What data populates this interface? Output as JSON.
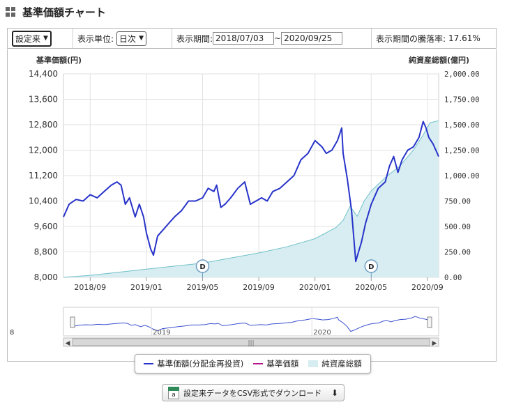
{
  "header": {
    "title": "基準価額チャート",
    "icon": "grid-icon"
  },
  "controls": {
    "range_select": "設定来",
    "unit_label": "表示単位:",
    "unit_select": "日次",
    "period_label": "表示期間:",
    "period_start": "2018/07/03",
    "period_sep": "~",
    "period_end": "2020/09/25",
    "change_label": "表示期間の騰落率:",
    "change_value": "17.61%"
  },
  "chart_data": {
    "type": "line",
    "left_axis_label": "基準価額(円)",
    "right_axis_label": "純資産総額(億円)",
    "y_left": {
      "min": 8000,
      "max": 14400,
      "ticks": [
        "8,000",
        "8,800",
        "9,600",
        "10,400",
        "11,200",
        "12,000",
        "12,800",
        "13,600",
        "14,400"
      ]
    },
    "y_right": {
      "min": 0,
      "max": 2000,
      "ticks": [
        "0.00",
        "250.00",
        "500.00",
        "750.00",
        "1,000.00",
        "1,250.00",
        "1,500.00",
        "1,750.00",
        "2,000.00"
      ]
    },
    "x_ticks": [
      "2018/09",
      "2019/01",
      "2019/05",
      "2019/09",
      "2020/01",
      "2020/05",
      "2020/09"
    ],
    "x_tick_months": [
      2,
      6,
      10,
      14,
      18,
      22,
      26
    ],
    "x_range_months": [
      0.1,
      26.8
    ],
    "nav": [
      [
        0.1,
        9900
      ],
      [
        0.5,
        10300
      ],
      [
        1.0,
        10450
      ],
      [
        1.5,
        10400
      ],
      [
        2.0,
        10600
      ],
      [
        2.5,
        10500
      ],
      [
        3.0,
        10700
      ],
      [
        3.5,
        10900
      ],
      [
        3.9,
        11000
      ],
      [
        4.2,
        10900
      ],
      [
        4.5,
        10300
      ],
      [
        4.8,
        10500
      ],
      [
        5.2,
        9900
      ],
      [
        5.5,
        10300
      ],
      [
        5.8,
        9900
      ],
      [
        6.0,
        9400
      ],
      [
        6.3,
        8900
      ],
      [
        6.5,
        8700
      ],
      [
        6.8,
        9300
      ],
      [
        7.2,
        9500
      ],
      [
        7.6,
        9700
      ],
      [
        8.0,
        9900
      ],
      [
        8.5,
        10100
      ],
      [
        9.0,
        10400
      ],
      [
        9.5,
        10400
      ],
      [
        10.0,
        10500
      ],
      [
        10.4,
        10800
      ],
      [
        10.8,
        10700
      ],
      [
        11.0,
        10900
      ],
      [
        11.3,
        10200
      ],
      [
        11.6,
        10300
      ],
      [
        12.0,
        10500
      ],
      [
        12.5,
        10800
      ],
      [
        13.0,
        11000
      ],
      [
        13.4,
        10300
      ],
      [
        13.8,
        10400
      ],
      [
        14.2,
        10500
      ],
      [
        14.6,
        10400
      ],
      [
        15.0,
        10700
      ],
      [
        15.5,
        10800
      ],
      [
        16.0,
        11000
      ],
      [
        16.5,
        11200
      ],
      [
        17.0,
        11700
      ],
      [
        17.5,
        11900
      ],
      [
        18.0,
        12300
      ],
      [
        18.5,
        12100
      ],
      [
        18.8,
        11900
      ],
      [
        19.2,
        12000
      ],
      [
        19.6,
        12300
      ],
      [
        19.9,
        12700
      ],
      [
        20.0,
        11900
      ],
      [
        20.3,
        11100
      ],
      [
        20.6,
        10100
      ],
      [
        20.9,
        8500
      ],
      [
        21.1,
        8800
      ],
      [
        21.3,
        9100
      ],
      [
        21.6,
        9700
      ],
      [
        22.0,
        10300
      ],
      [
        22.5,
        10800
      ],
      [
        23.0,
        11000
      ],
      [
        23.3,
        11500
      ],
      [
        23.6,
        11800
      ],
      [
        23.9,
        11300
      ],
      [
        24.2,
        11700
      ],
      [
        24.6,
        12000
      ],
      [
        25.0,
        12100
      ],
      [
        25.4,
        12400
      ],
      [
        25.7,
        12900
      ],
      [
        25.9,
        12700
      ],
      [
        26.1,
        12400
      ],
      [
        26.4,
        12200
      ],
      [
        26.6,
        12000
      ],
      [
        26.8,
        11800
      ]
    ],
    "assets": [
      [
        0.1,
        0
      ],
      [
        2,
        20
      ],
      [
        4,
        50
      ],
      [
        6,
        80
      ],
      [
        8,
        110
      ],
      [
        10,
        140
      ],
      [
        12,
        190
      ],
      [
        14,
        240
      ],
      [
        16,
        300
      ],
      [
        18,
        380
      ],
      [
        19.5,
        490
      ],
      [
        20.0,
        560
      ],
      [
        20.5,
        700
      ],
      [
        21.0,
        600
      ],
      [
        21.5,
        750
      ],
      [
        22.0,
        850
      ],
      [
        23.0,
        980
      ],
      [
        24.0,
        1090
      ],
      [
        25.0,
        1250
      ],
      [
        25.7,
        1400
      ],
      [
        26.2,
        1520
      ],
      [
        26.8,
        1540
      ]
    ],
    "distributions": [
      {
        "label": "D",
        "month": 10.0
      },
      {
        "label": "D",
        "month": 22.0
      }
    ],
    "navigator_ticks": [
      "2019",
      "2020"
    ],
    "navigator_tick_months": [
      6,
      18
    ],
    "navigator_left_label": "8",
    "colors": {
      "nav": "#2733c9",
      "assets_fill": "#d7edf1",
      "assets_line": "#6fc0c8",
      "grid": "#e2e2e2"
    }
  },
  "legend": {
    "items": [
      {
        "label": "基準価額(分配金再投資)",
        "color": "#2733c9",
        "kind": "line"
      },
      {
        "label": "基準価額",
        "color": "#b5198c",
        "kind": "line"
      },
      {
        "label": "純資産総額",
        "color": "#d7edf1",
        "kind": "area"
      }
    ]
  },
  "download": {
    "label": "設定来データをCSV形式でダウンロード",
    "icon": "csv-file-icon",
    "arrow": "download-arrow-icon"
  }
}
